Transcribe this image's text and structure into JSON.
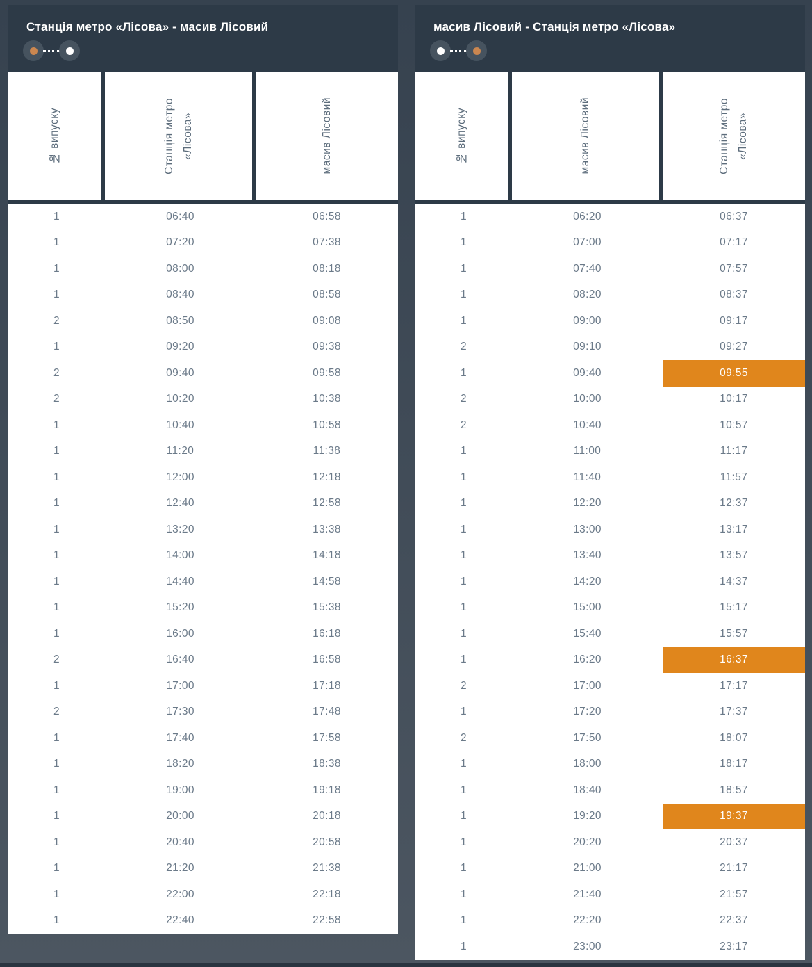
{
  "colors": {
    "accent_orange": "#E0861C",
    "dot_orange": "#CB8750",
    "panel_header_bg": "#2D3A47",
    "page_gradient_top": "#36424F",
    "page_gradient_bottom": "#4C5661",
    "body_text": "#6B7A89",
    "header_text": "#5D6D7C"
  },
  "tables": [
    {
      "title": "Станція метро «Лісова» - масив Лісовий",
      "route_indicator": {
        "start_dot": "orange",
        "end_dot": "white"
      },
      "columns": [
        "№ випуску",
        "Станція метро\n«Лісова»",
        "масив Лісовий"
      ],
      "rows": [
        {
          "no": "1",
          "dep": "06:40",
          "arr": "06:58"
        },
        {
          "no": "1",
          "dep": "07:20",
          "arr": "07:38"
        },
        {
          "no": "1",
          "dep": "08:00",
          "arr": "08:18"
        },
        {
          "no": "1",
          "dep": "08:40",
          "arr": "08:58"
        },
        {
          "no": "2",
          "dep": "08:50",
          "arr": "09:08"
        },
        {
          "no": "1",
          "dep": "09:20",
          "arr": "09:38"
        },
        {
          "no": "2",
          "dep": "09:40",
          "arr": "09:58"
        },
        {
          "no": "2",
          "dep": "10:20",
          "arr": "10:38"
        },
        {
          "no": "1",
          "dep": "10:40",
          "arr": "10:58"
        },
        {
          "no": "1",
          "dep": "11:20",
          "arr": "11:38"
        },
        {
          "no": "1",
          "dep": "12:00",
          "arr": "12:18"
        },
        {
          "no": "1",
          "dep": "12:40",
          "arr": "12:58"
        },
        {
          "no": "1",
          "dep": "13:20",
          "arr": "13:38"
        },
        {
          "no": "1",
          "dep": "14:00",
          "arr": "14:18"
        },
        {
          "no": "1",
          "dep": "14:40",
          "arr": "14:58"
        },
        {
          "no": "1",
          "dep": "15:20",
          "arr": "15:38"
        },
        {
          "no": "1",
          "dep": "16:00",
          "arr": "16:18"
        },
        {
          "no": "2",
          "dep": "16:40",
          "arr": "16:58"
        },
        {
          "no": "1",
          "dep": "17:00",
          "arr": "17:18"
        },
        {
          "no": "2",
          "dep": "17:30",
          "arr": "17:48"
        },
        {
          "no": "1",
          "dep": "17:40",
          "arr": "17:58"
        },
        {
          "no": "1",
          "dep": "18:20",
          "arr": "18:38"
        },
        {
          "no": "1",
          "dep": "19:00",
          "arr": "19:18"
        },
        {
          "no": "1",
          "dep": "20:00",
          "arr": "20:18"
        },
        {
          "no": "1",
          "dep": "20:40",
          "arr": "20:58"
        },
        {
          "no": "1",
          "dep": "21:20",
          "arr": "21:38"
        },
        {
          "no": "1",
          "dep": "22:00",
          "arr": "22:18"
        },
        {
          "no": "1",
          "dep": "22:40",
          "arr": "22:58"
        }
      ]
    },
    {
      "title": "масив Лісовий - Станція метро «Лісова»",
      "route_indicator": {
        "start_dot": "white",
        "end_dot": "orange"
      },
      "columns": [
        "№ випуску",
        "масив Лісовий",
        "Станція метро\n«Лісова»"
      ],
      "rows": [
        {
          "no": "1",
          "dep": "06:20",
          "arr": "06:37"
        },
        {
          "no": "1",
          "dep": "07:00",
          "arr": "07:17"
        },
        {
          "no": "1",
          "dep": "07:40",
          "arr": "07:57"
        },
        {
          "no": "1",
          "dep": "08:20",
          "arr": "08:37"
        },
        {
          "no": "1",
          "dep": "09:00",
          "arr": "09:17"
        },
        {
          "no": "2",
          "dep": "09:10",
          "arr": "09:27"
        },
        {
          "no": "1",
          "dep": "09:40",
          "arr": "09:55",
          "hl": true
        },
        {
          "no": "2",
          "dep": "10:00",
          "arr": "10:17"
        },
        {
          "no": "2",
          "dep": "10:40",
          "arr": "10:57"
        },
        {
          "no": "1",
          "dep": "11:00",
          "arr": "11:17"
        },
        {
          "no": "1",
          "dep": "11:40",
          "arr": "11:57"
        },
        {
          "no": "1",
          "dep": "12:20",
          "arr": "12:37"
        },
        {
          "no": "1",
          "dep": "13:00",
          "arr": "13:17"
        },
        {
          "no": "1",
          "dep": "13:40",
          "arr": "13:57"
        },
        {
          "no": "1",
          "dep": "14:20",
          "arr": "14:37"
        },
        {
          "no": "1",
          "dep": "15:00",
          "arr": "15:17"
        },
        {
          "no": "1",
          "dep": "15:40",
          "arr": "15:57"
        },
        {
          "no": "1",
          "dep": "16:20",
          "arr": "16:37",
          "hl": true
        },
        {
          "no": "2",
          "dep": "17:00",
          "arr": "17:17"
        },
        {
          "no": "1",
          "dep": "17:20",
          "arr": "17:37"
        },
        {
          "no": "2",
          "dep": "17:50",
          "arr": "18:07"
        },
        {
          "no": "1",
          "dep": "18:00",
          "arr": "18:17"
        },
        {
          "no": "1",
          "dep": "18:40",
          "arr": "18:57"
        },
        {
          "no": "1",
          "dep": "19:20",
          "arr": "19:37",
          "hl": true
        },
        {
          "no": "1",
          "dep": "20:20",
          "arr": "20:37"
        },
        {
          "no": "1",
          "dep": "21:00",
          "arr": "21:17"
        },
        {
          "no": "1",
          "dep": "21:40",
          "arr": "21:57"
        },
        {
          "no": "1",
          "dep": "22:20",
          "arr": "22:37"
        },
        {
          "no": "1",
          "dep": "23:00",
          "arr": "23:17"
        }
      ]
    }
  ]
}
